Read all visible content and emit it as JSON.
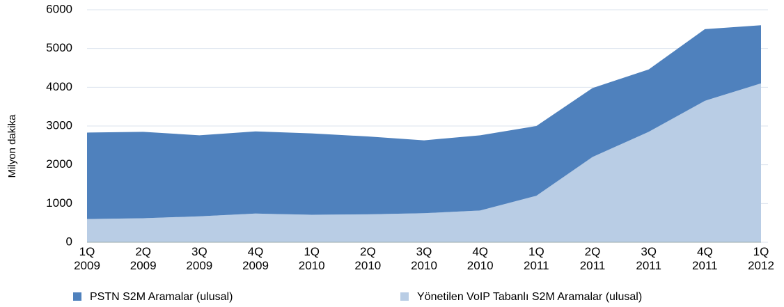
{
  "chart_data": {
    "type": "stacked_area",
    "y_label": "Milyon dakika",
    "categories": [
      "1Q 2009",
      "2Q 2009",
      "3Q 2009",
      "4Q 2009",
      "1Q 2010",
      "2Q 2010",
      "3Q 2010",
      "4Q 2010",
      "1Q 2011",
      "2Q 2011",
      "3Q 2011",
      "4Q 2011",
      "1Q 2012"
    ],
    "series": [
      {
        "name": "PSTN S2M Aramalar (ulusal)",
        "color": "#4f81bd",
        "values": [
          2230,
          2230,
          2090,
          2120,
          2100,
          2010,
          1880,
          1940,
          1800,
          1780,
          1610,
          1850,
          1500
        ]
      },
      {
        "name": "Yönetilen VoIP Tabanlı S2M Aramalar (ulusal)",
        "color": "#b9cde5",
        "values": [
          600,
          620,
          670,
          740,
          710,
          720,
          750,
          820,
          1200,
          2200,
          2850,
          3650,
          4100
        ]
      }
    ],
    "ylim": [
      0,
      6000
    ],
    "yticks": [
      0,
      1000,
      2000,
      3000,
      4000,
      5000,
      6000
    ],
    "grid": true
  }
}
